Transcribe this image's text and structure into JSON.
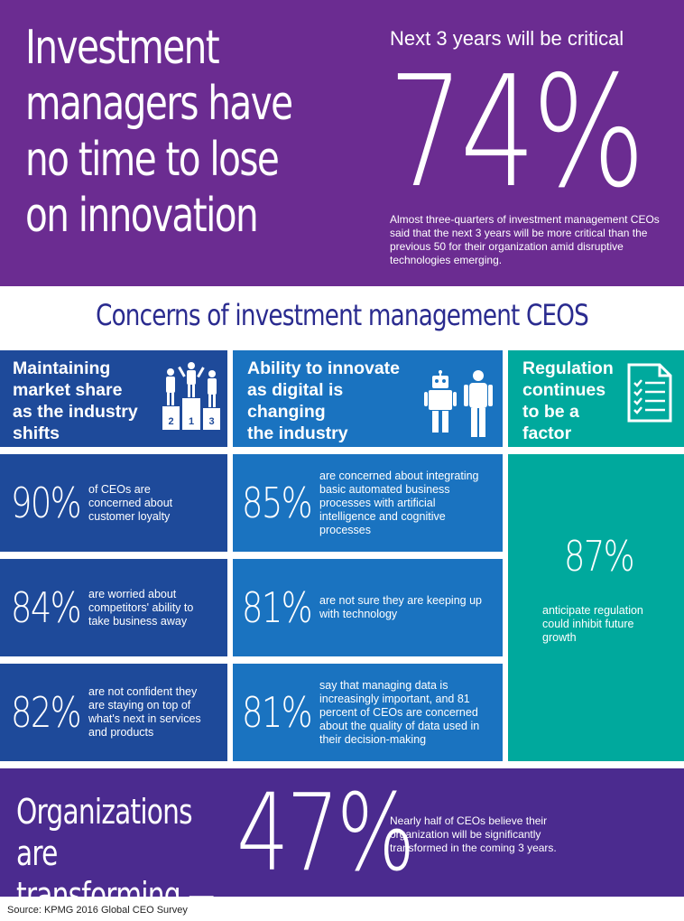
{
  "header": {
    "headline_lines": [
      "Investment",
      "managers have",
      "no time to lose",
      "on innovation"
    ],
    "critical_title": "Next 3 years will be critical",
    "critical_percent": "74%",
    "critical_desc": "Almost three-quarters of investment management CEOs said that the next 3 years will be more critical than the previous 50 for their organization amid disruptive technologies emerging."
  },
  "concerns_title": "Concerns of investment management CEOS",
  "columns": [
    {
      "heading_lines": [
        "Maintaining",
        "market share",
        "as the industry",
        "shifts"
      ],
      "icon": "podium-icon",
      "podium_labels": [
        "2",
        "1",
        "3"
      ],
      "stats": [
        {
          "percent": "90%",
          "desc": "of CEOs are concerned about customer loyalty"
        },
        {
          "percent": "84%",
          "desc": "are worried about competitors' ability to take business away"
        },
        {
          "percent": "82%",
          "desc": "are not confident they are staying on top of what's next in services and products"
        }
      ]
    },
    {
      "heading_lines": [
        "Ability to innovate",
        "as digital is",
        "changing",
        "the industry"
      ],
      "icon": "robot-human-icon",
      "stats": [
        {
          "percent": "85%",
          "desc": "are concerned about integrating basic automated business processes with artificial intelligence and cognitive processes"
        },
        {
          "percent": "81%",
          "desc": "are not sure they are keeping up with technology"
        },
        {
          "percent": "81%",
          "desc": "say that managing data is increasingly important, and 81 percent of CEOs are concerned about the quality of data used in their decision-making"
        }
      ]
    },
    {
      "heading_lines": [
        "Regulation",
        "continues",
        "to be a",
        "factor"
      ],
      "icon": "checklist-document-icon",
      "stat": {
        "percent": "87%",
        "desc": "anticipate regulation could inhibit future growth"
      }
    }
  ],
  "footer_band": {
    "title_lines": [
      "Organizations are",
      "transforming —"
    ],
    "percent": "47%",
    "desc": "Nearly half of CEOs believe their organization will be significantly transformed in the coming 3 years."
  },
  "source": "Source: KPMG 2016 Global CEO Survey",
  "colors": {
    "purple": "#6B2C91",
    "navy_heading": "#2A2B8F",
    "dark_blue": "#1E4A9A",
    "mid_blue": "#1A73C0",
    "teal": "#00A99D",
    "band_purple": "#4B2B8F"
  }
}
